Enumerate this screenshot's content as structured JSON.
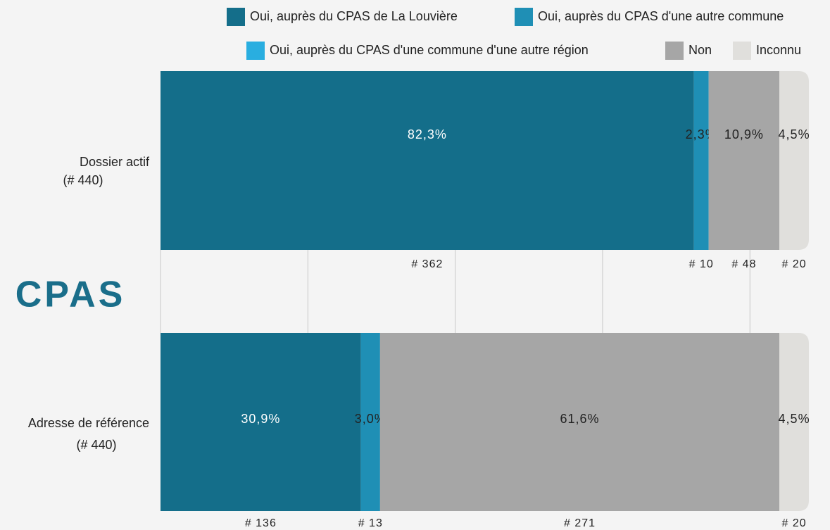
{
  "chart_data": {
    "type": "stacked-barh",
    "title": "CPAS",
    "categories": [
      "Dossier actif",
      "Adresse de référence"
    ],
    "category_counts": [
      "(# 440)",
      "(# 440)"
    ],
    "series": [
      {
        "name": "Oui, auprès du CPAS de La Louvière",
        "color": "#146e8a",
        "values": [
          362,
          136
        ],
        "value_labels": [
          "# 362",
          "# 136"
        ],
        "percent_labels": [
          "82,3%",
          "30,9%"
        ]
      },
      {
        "name": "Oui, auprès du CPAS d'une autre commune",
        "color": "#1f8fb5",
        "values": [
          10,
          13
        ],
        "value_labels": [
          "# 10",
          "# 13"
        ],
        "percent_labels": [
          "2,3%",
          "3,0%"
        ]
      },
      {
        "name": "Oui, auprès du CPAS d'une commune d'une autre région",
        "color": "#29aee0",
        "values": [
          null,
          null
        ],
        "value_labels": [
          null,
          null
        ],
        "percent_labels": [
          null,
          null
        ]
      },
      {
        "name": "Non",
        "color": "#a6a6a6",
        "values": [
          48,
          271
        ],
        "value_labels": [
          "# 48",
          "# 271"
        ],
        "percent_labels": [
          "10,9%",
          "61,6%"
        ]
      },
      {
        "name": "Inconnu",
        "color": "#e0dfdc",
        "values": [
          20,
          20
        ],
        "value_labels": [
          "# 20",
          "# 20"
        ],
        "percent_labels": [
          "4,5%",
          "4,5%"
        ]
      }
    ],
    "xlim": [
      0,
      440
    ],
    "xticks": [
      0,
      100,
      200,
      300,
      400
    ],
    "grid": true
  }
}
